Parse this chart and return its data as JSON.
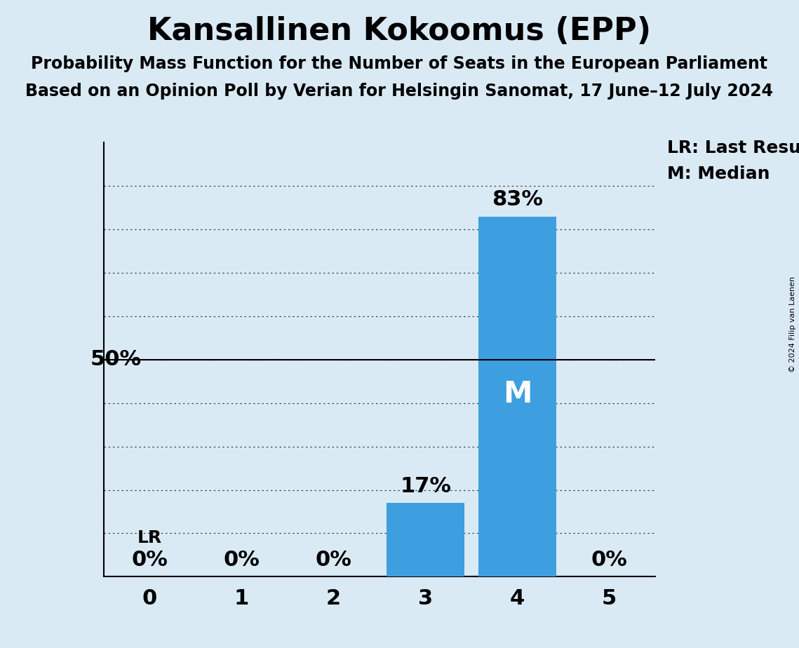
{
  "title": "Kansallinen Kokoomus (EPP)",
  "subtitle1": "Probability Mass Function for the Number of Seats in the European Parliament",
  "subtitle2": "Based on an Opinion Poll by Verian for Helsingin Sanomat, 17 June–12 July 2024",
  "copyright": "© 2024 Filip van Laenen",
  "categories": [
    0,
    1,
    2,
    3,
    4,
    5
  ],
  "values": [
    0,
    0,
    0,
    17,
    83,
    0
  ],
  "bar_color": "#3d9fe0",
  "background_color": "#daeaf5",
  "ylabel_50": "50%",
  "median_seat": 4,
  "last_result_seat": 0,
  "legend_lr": "LR: Last Result",
  "legend_m": "M: Median",
  "bar_labels": [
    "0%",
    "0%",
    "0%",
    "17%",
    "83%",
    "0%"
  ],
  "xlim": [
    -0.5,
    5.5
  ],
  "ylim": [
    0,
    100
  ],
  "gridline_y": [
    10,
    20,
    30,
    40,
    50,
    60,
    70,
    80,
    90
  ],
  "fifty_pct_y": 50,
  "title_fontsize": 32,
  "subtitle_fontsize": 17,
  "tick_fontsize": 22,
  "label_fontsize": 22,
  "legend_fontsize": 18,
  "median_fontsize": 30,
  "lr_fontsize": 18,
  "fifty_fontsize": 22
}
